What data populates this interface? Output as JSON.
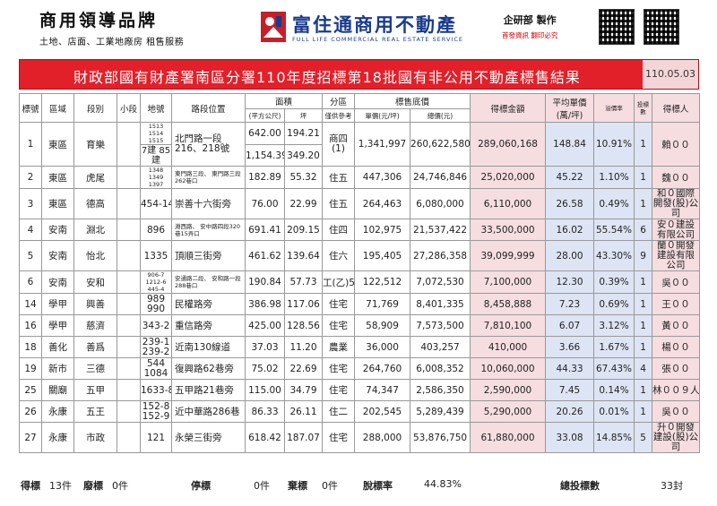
{
  "header": {
    "brand_title": "商用領導品牌",
    "brand_sub": "土地、店面、工業地廠房 租售服務",
    "company_name": "富住通商用不動產",
    "company_en": "FULL LIFE COMMERCIAL REAL ESTATE SERVICE",
    "producer": "企研部 製作",
    "producer_sub": "首發資訊 翻印必究",
    "accent": "#e2202a",
    "brand_blue": "#1a3b8e"
  },
  "title": {
    "text": "財政部國有財產署南區分署110年度招標第18批國有非公用不動產標售結果",
    "date": "110.05.03"
  },
  "columns": {
    "no": "標號",
    "district": "區域",
    "section": "段別",
    "subsection": "小段",
    "lot": "地號",
    "road": "路段位置",
    "area": "面積",
    "area_m2": "(平方公尺)",
    "area_ping": "坪",
    "zone": "分區",
    "zone_sub": "僅供參考",
    "base_price": "標售底價",
    "unit_price": "單價(元/坪)",
    "total_price": "總價(元)",
    "winning": "得標金額",
    "avg_unit": "平均單價",
    "avg_unit_sub": "(萬/坪)",
    "premium": "溢價率",
    "bids": "投標數",
    "winner": "得標人"
  },
  "rows": [
    {
      "no": "1",
      "district": "東區",
      "section": "育樂",
      "subsection": "",
      "lot": "1513 1514 1515",
      "lot2": "7建 85建",
      "road": "北門路一段 216、218號",
      "area_m2": "642.00",
      "area_ping": "194.21",
      "area_m2_b": "1,154.39",
      "area_ping_b": "349.20",
      "zone": "商四 (1)",
      "unit_price": "1,341,997",
      "total_price": "260,622,580",
      "winning": "289,060,168",
      "avg_unit": "148.84",
      "premium": "10.91%",
      "bids": "1",
      "winner": "賴００"
    },
    {
      "no": "2",
      "district": "東區",
      "section": "虎尾",
      "subsection": "",
      "lot": "1348 1349 1397",
      "road": "東門路三段、 東門路三段262巷口",
      "area_m2": "182.89",
      "area_ping": "55.32",
      "zone": "住五",
      "unit_price": "447,306",
      "total_price": "24,746,846",
      "winning": "25,020,000",
      "avg_unit": "45.22",
      "premium": "1.10%",
      "bids": "1",
      "winner": "魏００"
    },
    {
      "no": "3",
      "district": "東區",
      "section": "德高",
      "subsection": "",
      "lot": "454-14",
      "road": "崇善十六街旁",
      "area_m2": "76.00",
      "area_ping": "22.99",
      "zone": "住五",
      "unit_price": "264,463",
      "total_price": "6,080,000",
      "winning": "6,110,000",
      "avg_unit": "26.58",
      "premium": "0.49%",
      "bids": "1",
      "winner": "和０國際開發(股)公司"
    },
    {
      "no": "4",
      "district": "安南",
      "section": "淵北",
      "subsection": "",
      "lot": "896",
      "road": "淵西路、 安中路四段320巷15弄口",
      "area_m2": "691.41",
      "area_ping": "209.15",
      "zone": "住四",
      "unit_price": "102,975",
      "total_price": "21,537,422",
      "winning": "33,500,000",
      "avg_unit": "16.02",
      "premium": "55.54%",
      "bids": "6",
      "winner": "安０建設有限公司"
    },
    {
      "no": "5",
      "district": "安南",
      "section": "怡北",
      "subsection": "",
      "lot": "1335",
      "road": "頂順三街旁",
      "area_m2": "461.62",
      "area_ping": "139.64",
      "zone": "住六",
      "unit_price": "195,405",
      "total_price": "27,286,358",
      "winning": "39,099,999",
      "avg_unit": "28.00",
      "premium": "43.30%",
      "bids": "9",
      "winner": "蘭０開發建設有限公司"
    },
    {
      "no": "6",
      "district": "安南",
      "section": "安和",
      "subsection": "",
      "lot": "906-7 1212-6 445-4",
      "road": "安通路二段、 安和路一段288巷口",
      "area_m2": "190.84",
      "area_ping": "57.73",
      "zone": "工(乙)5",
      "unit_price": "122,512",
      "total_price": "7,072,530",
      "winning": "7,100,000",
      "avg_unit": "12.30",
      "premium": "0.39%",
      "bids": "1",
      "winner": "吳００"
    },
    {
      "no": "14",
      "district": "學甲",
      "section": "興善",
      "subsection": "",
      "lot": "989 990",
      "road": "民權路旁",
      "area_m2": "386.98",
      "area_ping": "117.06",
      "zone": "住宅",
      "unit_price": "71,769",
      "total_price": "8,401,335",
      "winning": "8,458,888",
      "avg_unit": "7.23",
      "premium": "0.69%",
      "bids": "1",
      "winner": "王００"
    },
    {
      "no": "16",
      "district": "學甲",
      "section": "慈濟",
      "subsection": "",
      "lot": "343-2",
      "road": "重信路旁",
      "area_m2": "425.00",
      "area_ping": "128.56",
      "zone": "住宅",
      "unit_price": "58,909",
      "total_price": "7,573,500",
      "winning": "7,810,100",
      "avg_unit": "6.07",
      "premium": "3.12%",
      "bids": "1",
      "winner": "黃００"
    },
    {
      "no": "18",
      "district": "善化",
      "section": "善爲",
      "subsection": "",
      "lot": "239-1 239-2",
      "road": "近南130線道",
      "area_m2": "37.03",
      "area_ping": "11.20",
      "zone": "農業",
      "unit_price": "36,000",
      "total_price": "403,257",
      "winning": "410,000",
      "avg_unit": "3.66",
      "premium": "1.67%",
      "bids": "1",
      "winner": "楊００"
    },
    {
      "no": "19",
      "district": "新市",
      "section": "三德",
      "subsection": "",
      "lot": "544 1084",
      "road": "復興路62巷旁",
      "area_m2": "75.02",
      "area_ping": "22.69",
      "zone": "住宅",
      "unit_price": "264,760",
      "total_price": "6,008,352",
      "winning": "10,060,000",
      "avg_unit": "44.33",
      "premium": "67.43%",
      "bids": "4",
      "winner": "張００"
    },
    {
      "no": "25",
      "district": "關廟",
      "section": "五甲",
      "subsection": "",
      "lot": "1633-8",
      "road": "五甲路21巷旁",
      "area_m2": "115.00",
      "area_ping": "34.79",
      "zone": "住宅",
      "unit_price": "74,347",
      "total_price": "2,586,350",
      "winning": "2,590,000",
      "avg_unit": "7.45",
      "premium": "0.14%",
      "bids": "1",
      "winner": "林００９人"
    },
    {
      "no": "26",
      "district": "永康",
      "section": "五王",
      "subsection": "",
      "lot": "152-8 152-9",
      "road": "近中華路286巷",
      "area_m2": "86.33",
      "area_ping": "26.11",
      "zone": "住二",
      "unit_price": "202,545",
      "total_price": "5,289,439",
      "winning": "5,290,000",
      "avg_unit": "20.26",
      "premium": "0.01%",
      "bids": "1",
      "winner": "吳００"
    },
    {
      "no": "27",
      "district": "永康",
      "section": "市政",
      "subsection": "",
      "lot": "121",
      "road": "永榮三街旁",
      "area_m2": "618.42",
      "area_ping": "187.07",
      "zone": "住宅",
      "unit_price": "288,000",
      "total_price": "53,876,750",
      "winning": "61,880,000",
      "avg_unit": "33.08",
      "premium": "14.85%",
      "bids": "5",
      "winner": "升０開發建設(股)公司"
    }
  ],
  "footer": {
    "win_label": "得標",
    "win_val": "13件",
    "void_label": "廢標",
    "void_val": "0件",
    "stop_label": "停標",
    "stop_val": "0件",
    "abandon_label": "棄標",
    "abandon_val": "0件",
    "rate_label": "脫標率",
    "rate_val": "44.83%",
    "total_label": "總投標數",
    "total_val": "33封"
  }
}
